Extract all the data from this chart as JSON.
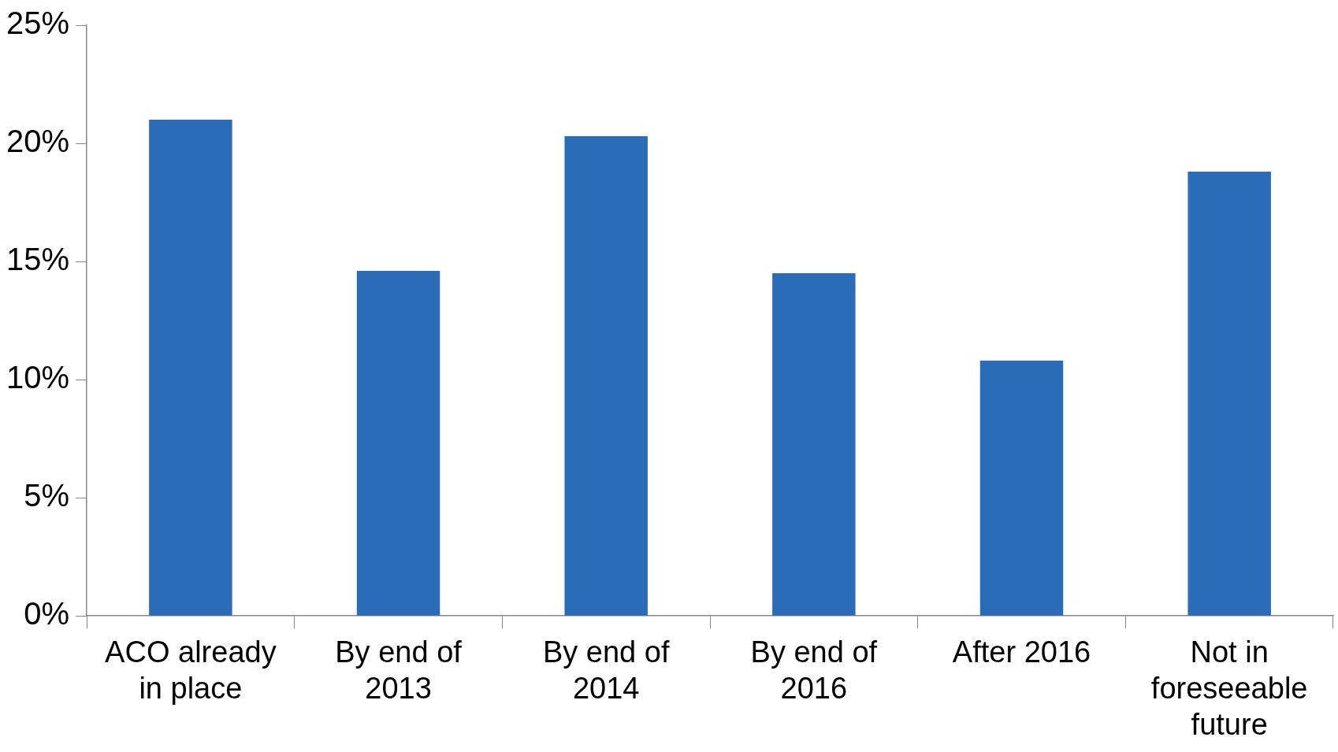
{
  "chart_data": {
    "type": "bar",
    "categories": [
      "ACO already in place",
      "By end of 2013",
      "By end of 2014",
      "By end of 2016",
      "After 2016",
      "Not in foreseeable future"
    ],
    "values": [
      21.0,
      14.6,
      20.3,
      14.5,
      10.8,
      18.8
    ],
    "color": "#2b6cb8",
    "ylim": [
      0,
      25
    ],
    "yticks": [
      {
        "value": 0,
        "label": "0%"
      },
      {
        "value": 5,
        "label": "5%"
      },
      {
        "value": 10,
        "label": "10%"
      },
      {
        "value": 15,
        "label": "15%"
      },
      {
        "value": 20,
        "label": "20%"
      },
      {
        "value": 25,
        "label": "25%"
      }
    ],
    "grid": false,
    "legend": false
  }
}
